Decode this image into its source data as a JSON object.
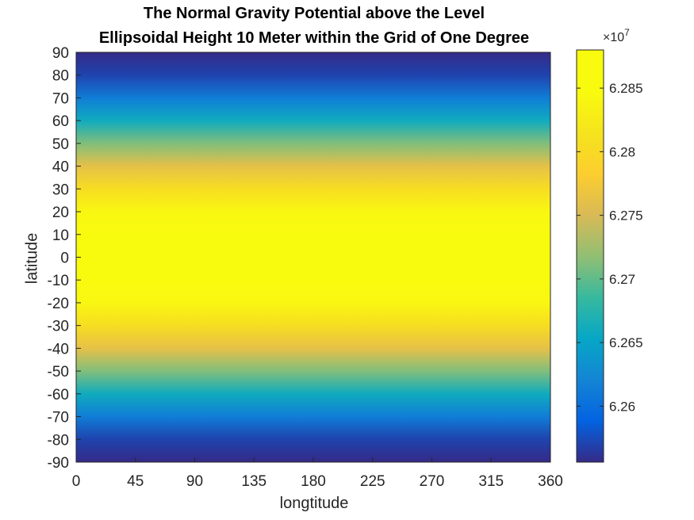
{
  "chart_data": {
    "type": "heatmap",
    "title_lines": [
      "The Normal Gravity Potential above the Level",
      "Ellipsoidal Height 10 Meter within the Grid of One Degree"
    ],
    "xlabel": "longtitude",
    "ylabel": "latitude",
    "xlim": [
      0,
      360
    ],
    "ylim": [
      -90,
      90
    ],
    "xticks": [
      0,
      45,
      90,
      135,
      180,
      225,
      270,
      315,
      360
    ],
    "yticks": [
      90,
      80,
      70,
      60,
      50,
      40,
      30,
      20,
      10,
      0,
      -10,
      -20,
      -30,
      -40,
      -50,
      -60,
      -70,
      -80,
      -90
    ],
    "colormap": "parula",
    "colorbar": {
      "multiplier_base": "×10",
      "multiplier_exp": "7",
      "clim": [
        6.2556,
        6.288
      ],
      "ticks": [
        6.26,
        6.265,
        6.27,
        6.275,
        6.28,
        6.285
      ]
    },
    "field_description_by_latitude": {
      "latitudes": [
        90,
        80,
        70,
        60,
        50,
        40,
        30,
        20,
        10,
        0
      ],
      "values_x1e7": [
        6.2556,
        6.257,
        6.2613,
        6.266,
        6.2712,
        6.2762,
        6.2805,
        6.2842,
        6.287,
        6.288
      ]
    }
  }
}
